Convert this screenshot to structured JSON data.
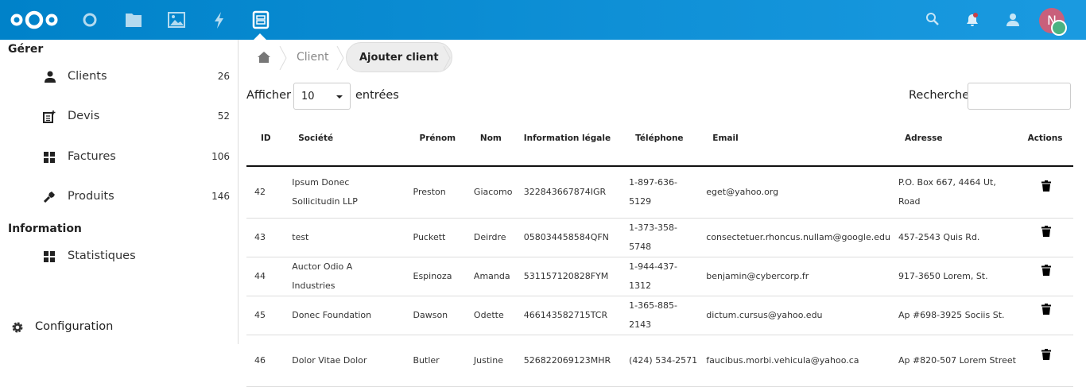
{
  "header": {
    "apps": [
      "dashboard-icon",
      "files-icon",
      "photos-icon",
      "activity-icon",
      "clients-app-icon"
    ],
    "avatar_initial": "N",
    "accent": "#0082c9"
  },
  "sidebar": {
    "section_manage": "Gérer",
    "items": [
      {
        "label": "Clients",
        "count": "26",
        "icon": "user-icon"
      },
      {
        "label": "Devis",
        "count": "52",
        "icon": "quote-icon"
      },
      {
        "label": "Factures",
        "count": "106",
        "icon": "grid-icon"
      },
      {
        "label": "Produits",
        "count": "146",
        "icon": "wrench-icon"
      }
    ],
    "section_info": "Information",
    "info_items": [
      {
        "label": "Statistiques",
        "icon": "grid-icon"
      }
    ],
    "config": "Configuration"
  },
  "breadcrumb": {
    "items": [
      "Client",
      "Ajouter client"
    ]
  },
  "controls": {
    "show_label": "Afficher",
    "page_size": "10",
    "entries_label": "entrées",
    "search_label": "Recherche",
    "search_value": ""
  },
  "table": {
    "headers": [
      "ID",
      "Société",
      "Prénom",
      "Nom",
      "Information légale",
      "Téléphone",
      "Email",
      "Adresse",
      "Actions"
    ],
    "rows": [
      [
        "42",
        "Ipsum Donec Sollicitudin LLP",
        "Preston",
        "Giacomo",
        "322843667874IGR",
        "1-897-636-5129",
        "eget@yahoo.org",
        "P.O. Box 667, 4464 Ut, Road"
      ],
      [
        "43",
        "test",
        "Puckett",
        "Deirdre",
        "058034458584QFN",
        "1-373-358-5748",
        "consectetuer.rhoncus.nullam@google.edu",
        "457-2543 Quis Rd."
      ],
      [
        "44",
        "Auctor Odio A Industries",
        "Espinoza",
        "Amanda",
        "531157120828FYM",
        "1-944-437-1312",
        "benjamin@cybercorp.fr",
        "917-3650 Lorem, St."
      ],
      [
        "45",
        "Donec Foundation",
        "Dawson",
        "Odette",
        "466143582715TCR",
        "1-365-885-2143",
        "dictum.cursus@yahoo.edu",
        "Ap #698-3925 Sociis St."
      ],
      [
        "46",
        "Dolor Vitae Dolor",
        "Butler",
        "Justine",
        "526822069123MHR",
        "(424) 534-2571",
        "faucibus.morbi.vehicula@yahoo.ca",
        "Ap #820-507 Lorem Street"
      ]
    ]
  }
}
